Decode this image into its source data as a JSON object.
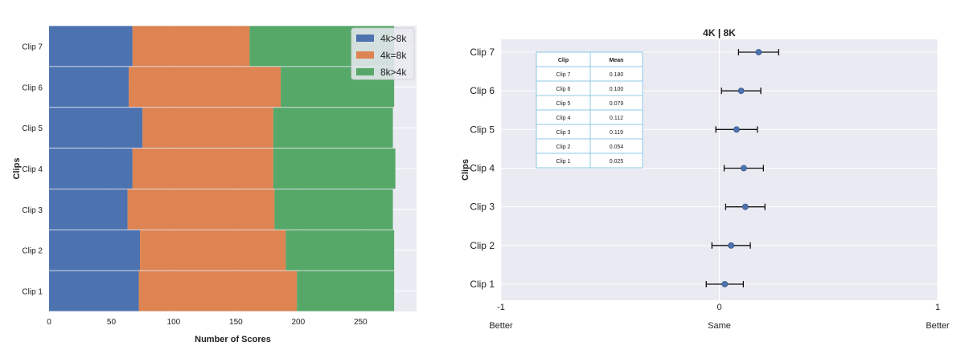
{
  "chart_data": [
    {
      "type": "bar",
      "orientation": "horizontal",
      "stacked": true,
      "categories": [
        "Clip 1",
        "Clip 2",
        "Clip 3",
        "Clip 4",
        "Clip 5",
        "Clip 6",
        "Clip 7"
      ],
      "series": [
        {
          "name": "4k>8k",
          "color": "#4c72b0",
          "values": [
            72,
            73,
            63,
            67,
            75,
            64,
            67
          ]
        },
        {
          "name": "4k=8k",
          "color": "#dd8452",
          "values": [
            127,
            117,
            118,
            113,
            105,
            122,
            94
          ]
        },
        {
          "name": "8k>4k",
          "color": "#55a868",
          "values": [
            78,
            87,
            95,
            98,
            96,
            91,
            116
          ]
        }
      ],
      "title": "",
      "xlabel": "Number of Scores",
      "ylabel": "Clips",
      "xlim": [
        0,
        295
      ],
      "xticks": [
        0,
        50,
        100,
        150,
        200,
        250
      ],
      "grid": true,
      "background": "#eaeaf2",
      "legend_position": "top-right"
    },
    {
      "type": "errorbar",
      "title": "4K | 8K",
      "categories": [
        "Clip 1",
        "Clip 2",
        "Clip 3",
        "Clip 4",
        "Clip 5",
        "Clip 6",
        "Clip 7"
      ],
      "values": [
        0.025,
        0.054,
        0.119,
        0.112,
        0.079,
        0.1,
        0.18
      ],
      "error": [
        0.085,
        0.088,
        0.09,
        0.09,
        0.095,
        0.09,
        0.092
      ],
      "point_color": "#4c72b0",
      "xlabel": "",
      "ylabel": "Clips",
      "xlim": [
        -1,
        1
      ],
      "xticks": [
        -1,
        0,
        1
      ],
      "xtick_labels": [
        "-1",
        "0",
        "1"
      ],
      "xtick_sublabels": [
        "Better",
        "Same",
        "Better"
      ],
      "grid": true,
      "background": "#eaeaf2",
      "table": {
        "headers": [
          "Clip",
          "Mean"
        ],
        "rows": [
          [
            "Clip 7",
            "0.180"
          ],
          [
            "Clip 6",
            "0.100"
          ],
          [
            "Clip 5",
            "0.079"
          ],
          [
            "Clip 4",
            "0.112"
          ],
          [
            "Clip 3",
            "0.119"
          ],
          [
            "Clip 2",
            "0.054"
          ],
          [
            "Clip 1",
            "0.025"
          ]
        ],
        "border_color": "#8ecae6"
      }
    }
  ]
}
